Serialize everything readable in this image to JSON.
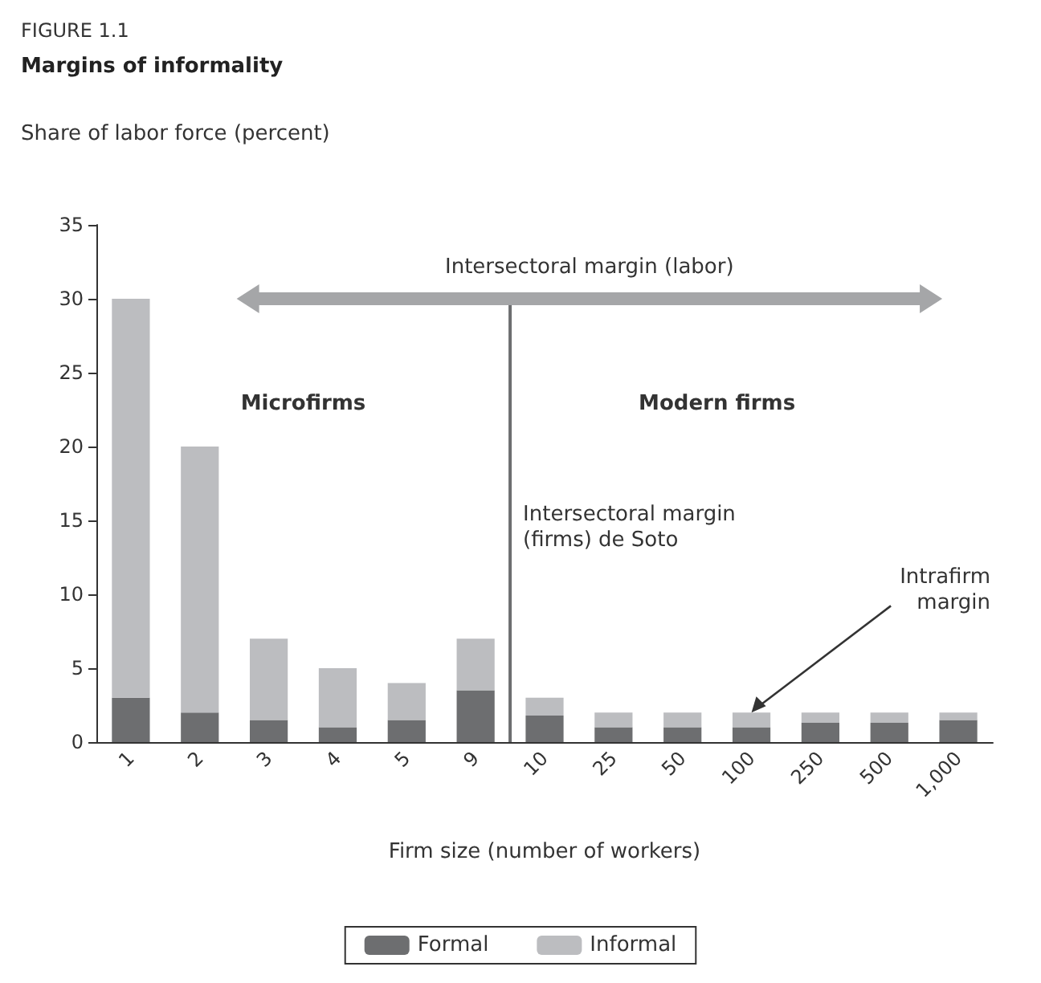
{
  "chart_data": {
    "type": "bar",
    "title": "FIGURE 1.1",
    "subtitle": "Margins of informality",
    "ylabel": "Share of labor force (percent)",
    "xlabel": "Firm size (number of workers)",
    "categories": [
      "1",
      "2",
      "3",
      "4",
      "5",
      "9",
      "10",
      "25",
      "50",
      "100",
      "250",
      "500",
      "1,000"
    ],
    "stacked": true,
    "series": [
      {
        "name": "Formal",
        "color": "#6d6e70",
        "values": [
          3,
          2,
          1.5,
          1,
          1.5,
          3.5,
          1.8,
          1,
          1,
          1,
          1.3,
          1.3,
          1.5
        ]
      },
      {
        "name": "Informal",
        "color": "#bcbdc0",
        "values": [
          27,
          18,
          5.5,
          4,
          2.5,
          3.5,
          1.2,
          1,
          1,
          1,
          0.7,
          0.7,
          0.5
        ]
      }
    ],
    "ylim": [
      0,
      35
    ],
    "yticks": [
      0,
      5,
      10,
      15,
      20,
      25,
      30,
      35
    ],
    "grid": false,
    "legend": "bottom",
    "annotations": [
      "Intersectoral margin (labor)",
      "Microfirms",
      "Modern firms",
      "Intersectoral margin\n(firms) de Soto",
      {
        "text": "Intrafirm\nmargin",
        "x": "100",
        "y": 2
      }
    ]
  }
}
